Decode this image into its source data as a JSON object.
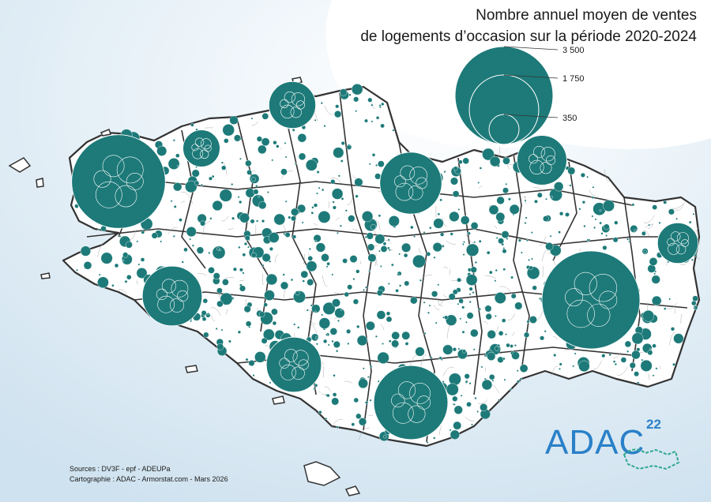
{
  "title": {
    "line1": "Nombre annuel moyen de ventes",
    "line2": "de logements d’occasion sur la période 2020-2024"
  },
  "legend": {
    "entries": [
      {
        "label": "3 500",
        "value": 3500
      },
      {
        "label": "1 750",
        "value": 1750
      },
      {
        "label": "350",
        "value": 350
      }
    ]
  },
  "credits": {
    "sources": "Sources : DV3F - epf - ADEUPa",
    "cartographie": "Cartographie : ADAC - Armorstat.com - Mars 2026"
  },
  "logo": {
    "name": "ADAC",
    "superscript": "22"
  },
  "colors": {
    "sea": "#d9e8f2",
    "land": "#ffffff",
    "bubble": "#1d7a79",
    "bubble_stroke": "#ffffff",
    "border": "#333333",
    "commune_line": "#aaaaaa",
    "logo": "#2a80c8"
  },
  "map_data": {
    "type": "proportional-symbols",
    "measure": "Nombre annuel moyen de ventes de logements d’occasion",
    "period": "2020-2024",
    "major_values": [
      {
        "value": 3500
      },
      {
        "value": 3200
      },
      {
        "value": 2000
      },
      {
        "value": 1400
      },
      {
        "value": 1300
      },
      {
        "value": 1100
      },
      {
        "value": 900
      },
      {
        "value": 800
      },
      {
        "value": 600
      },
      {
        "value": 500
      }
    ]
  }
}
